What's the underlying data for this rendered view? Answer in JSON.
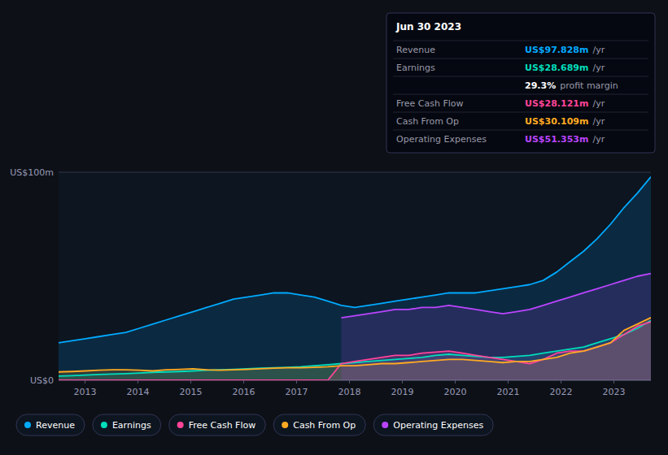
{
  "chart_data": {
    "type": "area",
    "x": [
      2012.5,
      2012.7545454545,
      2013.0090909091,
      2013.2636363636,
      2013.5181818182,
      2013.7727272727,
      2014.0272727273,
      2014.2818181818,
      2014.5363636364,
      2014.7909090909,
      2015.0454545455,
      2015.3,
      2015.5545454545,
      2015.8090909091,
      2016.0636363636,
      2016.3181818182,
      2016.5727272727,
      2016.8272727273,
      2017.0818181818,
      2017.3363636364,
      2017.5909090909,
      2017.8454545455,
      2018.1,
      2018.3545454545,
      2018.6090909091,
      2018.8636363636,
      2019.1181818182,
      2019.3727272727,
      2019.6272727273,
      2019.8818181818,
      2020.1363636364,
      2020.3909090909,
      2020.6454545455,
      2020.9,
      2021.1545454545,
      2021.4090909091,
      2021.6636363636,
      2021.9181818182,
      2022.1727272727,
      2022.4272727273,
      2022.6818181818,
      2022.9363636364,
      2023.1909090909,
      2023.4454545455,
      2023.7
    ],
    "series": [
      {
        "name": "Revenue",
        "color": "#00aaff",
        "values": [
          18,
          19,
          20,
          21,
          22,
          23,
          25,
          27,
          29,
          31,
          33,
          35,
          37,
          39,
          40,
          41,
          42,
          42,
          41,
          40,
          38,
          36,
          35,
          36,
          37,
          38,
          39,
          40,
          41,
          42,
          42,
          42,
          43,
          44,
          45,
          46,
          48,
          52,
          57,
          62,
          68,
          75,
          83,
          90,
          97.828
        ]
      },
      {
        "name": "Earnings",
        "color": "#00ddbb",
        "values": [
          2,
          2.2,
          2.5,
          2.8,
          3,
          3.2,
          3.5,
          3.8,
          4,
          4.2,
          4.5,
          4.8,
          5,
          5.2,
          5.5,
          5.8,
          6,
          6.2,
          6.5,
          7,
          7.5,
          8,
          8.5,
          9,
          9.5,
          10,
          10.5,
          11,
          12,
          12.5,
          12,
          11.5,
          11,
          11,
          11.5,
          12,
          13,
          14,
          15,
          16,
          18,
          20,
          22,
          25,
          28.689
        ]
      },
      {
        "name": "Free Cash Flow",
        "color": "#ff4499",
        "values": [
          0,
          0,
          0,
          0,
          0,
          0,
          0,
          0,
          0,
          0,
          0,
          0,
          0,
          0,
          0,
          0,
          0,
          0,
          0,
          0,
          0,
          8,
          9,
          10,
          11,
          12,
          12,
          13,
          13.5,
          14,
          13,
          12,
          11,
          10,
          9,
          8,
          10,
          13,
          14,
          14,
          16,
          18,
          22,
          26,
          28.121
        ]
      },
      {
        "name": "Cash From Op",
        "color": "#ffaa22",
        "values": [
          4,
          4.2,
          4.5,
          4.8,
          5,
          5,
          4.8,
          4.5,
          5,
          5.2,
          5.5,
          5,
          4.8,
          5,
          5.2,
          5.5,
          5.8,
          6,
          6,
          6.2,
          6.5,
          7,
          7,
          7.5,
          8,
          8,
          8.5,
          9,
          9.5,
          10,
          10,
          9.5,
          9,
          8.5,
          9,
          9,
          10,
          11,
          13,
          14,
          16,
          18,
          24,
          27,
          30.109
        ]
      },
      {
        "name": "Operating Expenses",
        "color": "#bb44ff",
        "values": [
          null,
          null,
          null,
          null,
          null,
          null,
          null,
          null,
          null,
          null,
          null,
          null,
          null,
          null,
          null,
          null,
          null,
          null,
          null,
          null,
          null,
          30,
          31,
          32,
          33,
          34,
          34,
          35,
          35,
          36,
          35,
          34,
          33,
          32,
          33,
          34,
          36,
          38,
          40,
          42,
          44,
          46,
          48,
          50,
          51.353
        ]
      }
    ],
    "xlim": [
      2012.5,
      2023.7
    ],
    "xticks": [
      2013,
      2014,
      2015,
      2016,
      2017,
      2018,
      2019,
      2020,
      2021,
      2022,
      2023
    ],
    "ylim": [
      0,
      100
    ],
    "yticks": [
      {
        "value": 0,
        "label": "US$0"
      },
      {
        "value": 100,
        "label": "US$100m"
      }
    ],
    "grid": true,
    "legend": "bottom",
    "annotations": {
      "title": "Jun 30 2023",
      "unit": "/yr",
      "rows": [
        {
          "name": "Revenue",
          "label": "US$97.828m"
        },
        {
          "name": "Earnings",
          "label": "US$28.689m"
        },
        {
          "label": "29.3%",
          "text": "profit margin"
        },
        {
          "name": "Free Cash Flow",
          "label": "US$28.121m"
        },
        {
          "name": "Cash From Op",
          "label": "US$30.109m"
        },
        {
          "name": "Operating Expenses",
          "label": "US$51.353m"
        }
      ]
    }
  }
}
